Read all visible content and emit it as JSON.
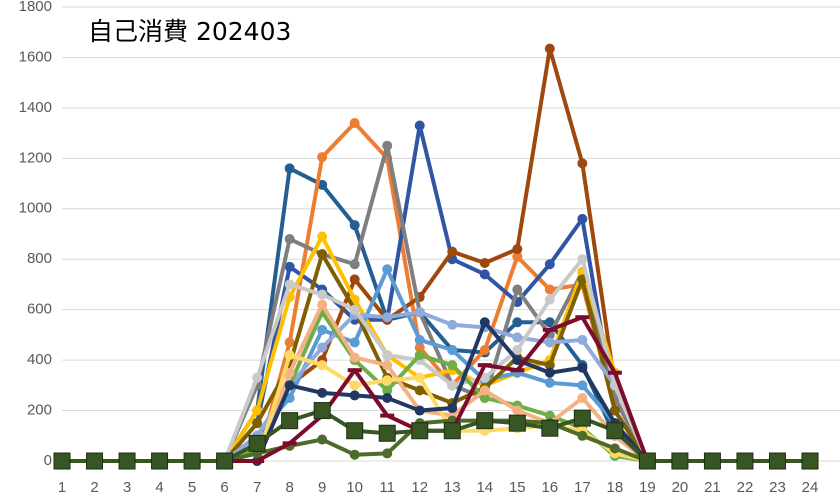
{
  "chart_data": {
    "type": "line",
    "title": "自己消費 202403",
    "categories": [
      "1",
      "2",
      "3",
      "4",
      "5",
      "6",
      "7",
      "8",
      "9",
      "10",
      "11",
      "12",
      "13",
      "14",
      "15",
      "16",
      "17",
      "18",
      "19",
      "20",
      "21",
      "22",
      "23",
      "24"
    ],
    "ylim": [
      0,
      1800
    ],
    "yticks": [
      0,
      200,
      400,
      600,
      800,
      1000,
      1200,
      1400,
      1600,
      1800
    ],
    "grid": true,
    "series": [
      {
        "color": "#255e91",
        "marker": "circle",
        "values": [
          0,
          0,
          0,
          0,
          0,
          0,
          200,
          1160,
          1095,
          935,
          560,
          590,
          440,
          430,
          550,
          550,
          380,
          100,
          0,
          0,
          0,
          0,
          0,
          0
        ]
      },
      {
        "color": "#ed7d31",
        "marker": "circle",
        "values": [
          0,
          0,
          0,
          0,
          0,
          0,
          0,
          470,
          1205,
          1340,
          1200,
          450,
          300,
          440,
          810,
          680,
          700,
          200,
          0,
          0,
          0,
          0,
          0,
          0
        ]
      },
      {
        "color": "#2f55a4",
        "marker": "circle",
        "values": [
          0,
          0,
          0,
          0,
          0,
          0,
          150,
          770,
          680,
          560,
          560,
          1330,
          800,
          740,
          630,
          780,
          960,
          200,
          0,
          0,
          0,
          0,
          0,
          0
        ]
      },
      {
        "color": "#9e480e",
        "marker": "circle",
        "values": [
          0,
          0,
          0,
          0,
          0,
          0,
          0,
          300,
          400,
          720,
          560,
          650,
          830,
          785,
          840,
          1635,
          1180,
          300,
          0,
          0,
          0,
          0,
          0,
          0
        ]
      },
      {
        "color": "#7f7f7f",
        "marker": "circle",
        "values": [
          0,
          0,
          0,
          0,
          0,
          0,
          300,
          880,
          820,
          780,
          1250,
          590,
          300,
          250,
          680,
          500,
          750,
          250,
          0,
          0,
          0,
          0,
          0,
          0
        ]
      },
      {
        "color": "#ffc000",
        "marker": "circle",
        "values": [
          0,
          0,
          0,
          0,
          0,
          0,
          200,
          650,
          890,
          640,
          420,
          330,
          360,
          300,
          350,
          400,
          750,
          350,
          0,
          0,
          0,
          0,
          0,
          0
        ]
      },
      {
        "color": "#5b9bd5",
        "marker": "circle",
        "values": [
          0,
          0,
          0,
          0,
          0,
          0,
          100,
          250,
          520,
          470,
          760,
          480,
          440,
          320,
          350,
          310,
          300,
          150,
          0,
          0,
          0,
          0,
          0,
          0
        ]
      },
      {
        "color": "#7f6000",
        "marker": "circle",
        "values": [
          0,
          0,
          0,
          0,
          0,
          0,
          150,
          380,
          820,
          600,
          330,
          280,
          230,
          290,
          410,
          380,
          720,
          200,
          0,
          0,
          0,
          0,
          0,
          0
        ]
      },
      {
        "color": "#8faadc",
        "marker": "circle",
        "values": [
          0,
          0,
          0,
          0,
          0,
          0,
          100,
          300,
          450,
          580,
          570,
          590,
          540,
          530,
          490,
          470,
          480,
          300,
          0,
          0,
          0,
          0,
          0,
          0
        ]
      },
      {
        "color": "#c9c9c9",
        "marker": "circle",
        "values": [
          0,
          0,
          0,
          0,
          0,
          0,
          330,
          700,
          660,
          600,
          420,
          400,
          300,
          330,
          440,
          640,
          800,
          300,
          0,
          0,
          0,
          0,
          0,
          0
        ]
      },
      {
        "color": "#70ad47",
        "marker": "circle",
        "values": [
          0,
          0,
          0,
          0,
          0,
          0,
          50,
          300,
          590,
          400,
          280,
          420,
          380,
          250,
          220,
          180,
          130,
          20,
          0,
          0,
          0,
          0,
          0,
          0
        ]
      },
      {
        "color": "#f4b183",
        "marker": "circle",
        "values": [
          0,
          0,
          0,
          0,
          0,
          0,
          0,
          350,
          620,
          410,
          380,
          200,
          180,
          280,
          200,
          150,
          250,
          100,
          0,
          0,
          0,
          0,
          0,
          0
        ]
      },
      {
        "color": "#ffd966",
        "marker": "circle",
        "values": [
          0,
          0,
          0,
          0,
          0,
          0,
          0,
          420,
          380,
          300,
          320,
          330,
          120,
          120,
          130,
          140,
          120,
          30,
          0,
          0,
          0,
          0,
          0,
          0
        ]
      },
      {
        "color": "#1f3864",
        "marker": "circle",
        "values": [
          0,
          0,
          0,
          0,
          0,
          0,
          0,
          300,
          270,
          260,
          250,
          200,
          210,
          550,
          400,
          350,
          370,
          150,
          0,
          0,
          0,
          0,
          0,
          0
        ]
      },
      {
        "color": "#4e6b2c",
        "marker": "circle",
        "values": [
          0,
          0,
          0,
          0,
          0,
          0,
          30,
          60,
          85,
          25,
          30,
          150,
          160,
          160,
          160,
          150,
          100,
          50,
          0,
          0,
          0,
          0,
          0,
          0
        ]
      },
      {
        "color": "#7b0c2c",
        "marker": "dash",
        "values": [
          0,
          0,
          0,
          0,
          0,
          0,
          0,
          70,
          180,
          360,
          180,
          120,
          120,
          380,
          360,
          520,
          570,
          350,
          0,
          0,
          0,
          0,
          0,
          0
        ]
      },
      {
        "color": "#375623",
        "marker": "square",
        "values": [
          0,
          0,
          0,
          0,
          0,
          0,
          70,
          160,
          200,
          120,
          110,
          120,
          120,
          160,
          150,
          130,
          170,
          120,
          0,
          0,
          0,
          0,
          0,
          0
        ]
      }
    ]
  }
}
